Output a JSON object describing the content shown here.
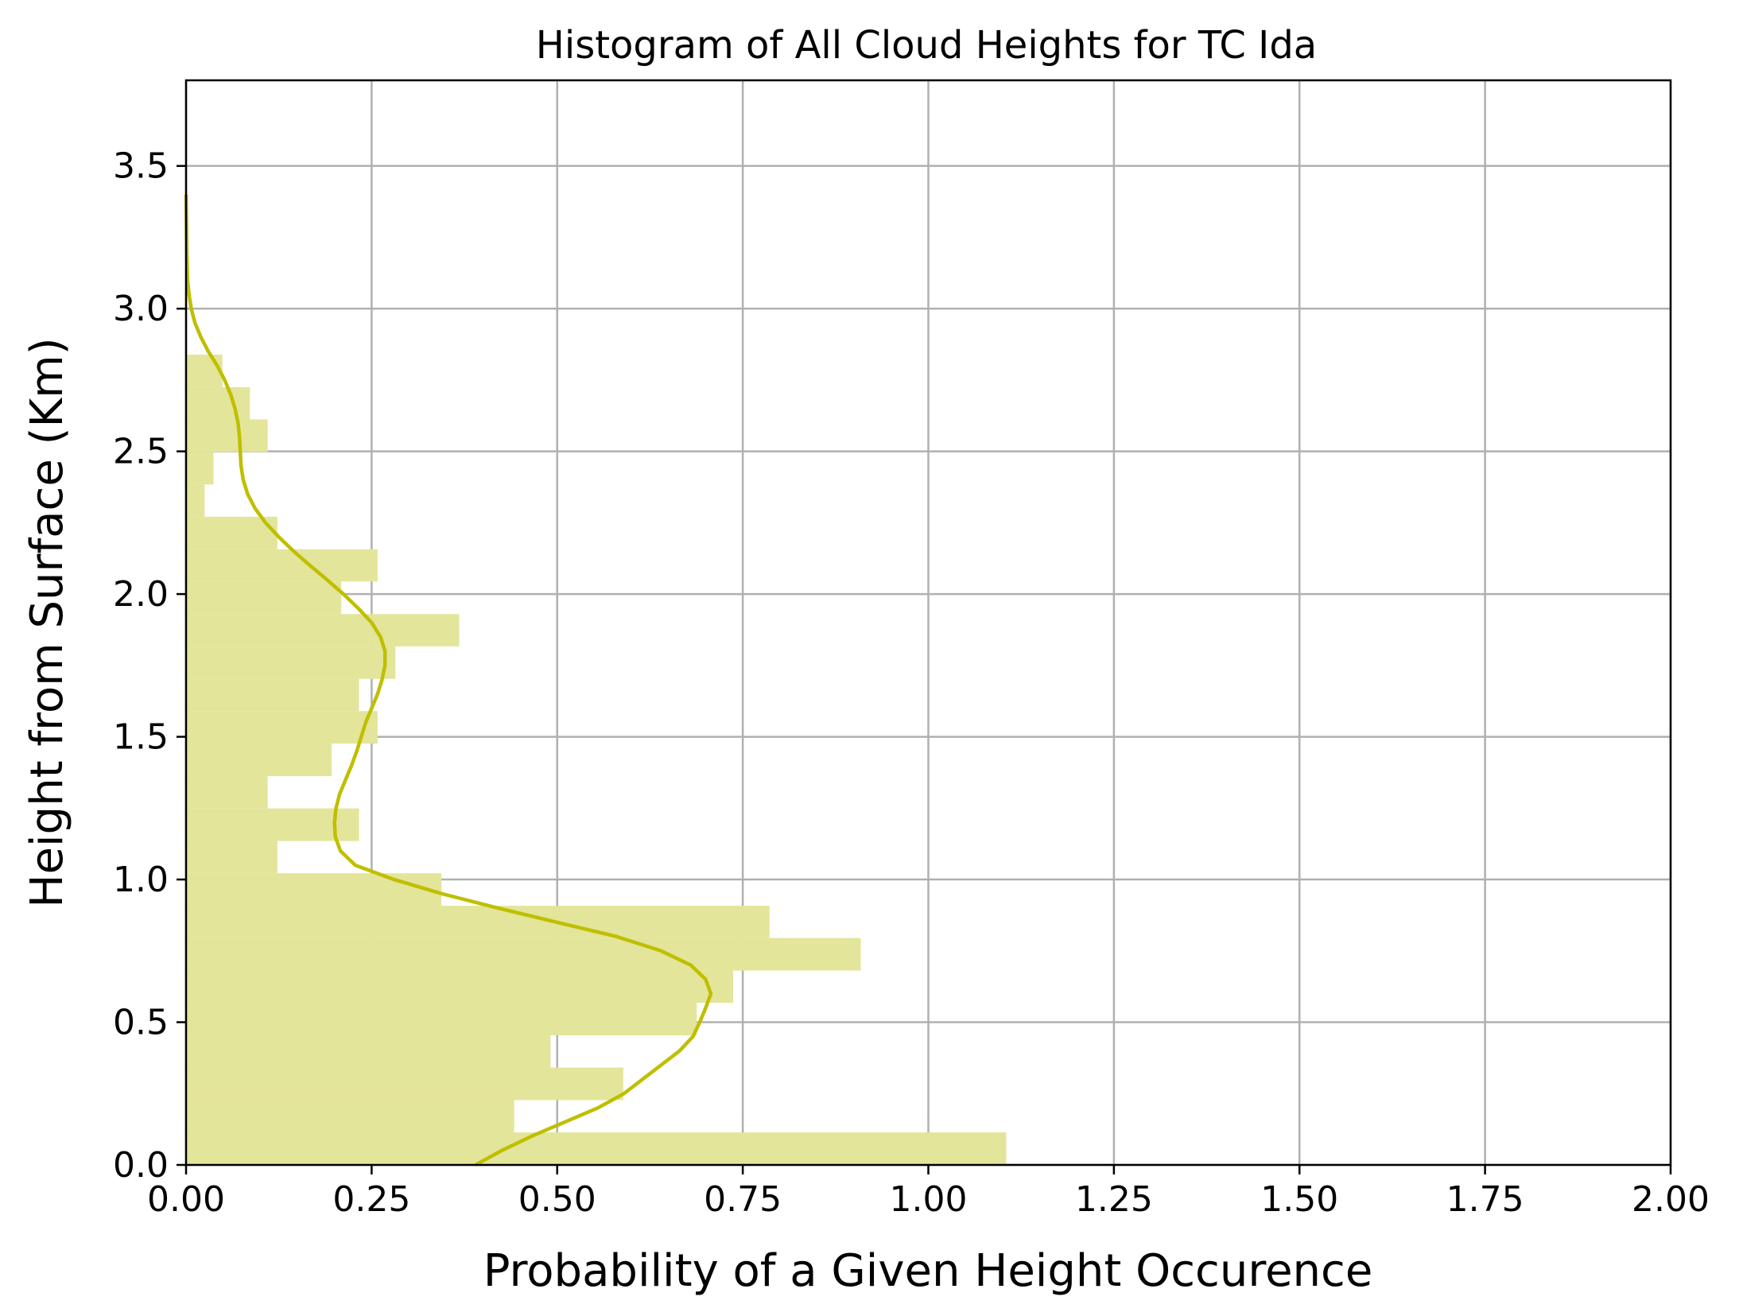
{
  "chart_data": {
    "type": "bar",
    "orientation": "horizontal",
    "title": "Histogram of All Cloud Heights for TC Ida",
    "xlabel": "Probability of a Given Height Occurence",
    "ylabel": "Height from Surface (Km)",
    "xlim": [
      0.0,
      2.0
    ],
    "ylim": [
      0.0,
      3.8
    ],
    "xticks": [
      "0.00",
      "0.25",
      "0.50",
      "0.75",
      "1.00",
      "1.25",
      "1.50",
      "1.75",
      "2.00"
    ],
    "yticks": [
      "0.0",
      "0.5",
      "1.0",
      "1.5",
      "2.0",
      "2.5",
      "3.0",
      "3.5"
    ],
    "grid": true,
    "colors": {
      "bars": "#e3e59a",
      "kde_line": "#bfbf00"
    },
    "bins": [
      {
        "y0": 0.0,
        "y1": 0.114,
        "value": 1.105
      },
      {
        "y0": 0.114,
        "y1": 0.227,
        "value": 0.442
      },
      {
        "y0": 0.227,
        "y1": 0.341,
        "value": 0.589
      },
      {
        "y0": 0.341,
        "y1": 0.454,
        "value": 0.491
      },
      {
        "y0": 0.454,
        "y1": 0.568,
        "value": 0.688
      },
      {
        "y0": 0.568,
        "y1": 0.681,
        "value": 0.737
      },
      {
        "y0": 0.681,
        "y1": 0.795,
        "value": 0.909
      },
      {
        "y0": 0.795,
        "y1": 0.908,
        "value": 0.786
      },
      {
        "y0": 0.908,
        "y1": 1.022,
        "value": 0.344
      },
      {
        "y0": 1.022,
        "y1": 1.135,
        "value": 0.123
      },
      {
        "y0": 1.135,
        "y1": 1.249,
        "value": 0.233
      },
      {
        "y0": 1.249,
        "y1": 1.362,
        "value": 0.11
      },
      {
        "y0": 1.362,
        "y1": 1.476,
        "value": 0.196
      },
      {
        "y0": 1.476,
        "y1": 1.59,
        "value": 0.258
      },
      {
        "y0": 1.59,
        "y1": 1.703,
        "value": 0.233
      },
      {
        "y0": 1.703,
        "y1": 1.817,
        "value": 0.282
      },
      {
        "y0": 1.817,
        "y1": 1.93,
        "value": 0.368
      },
      {
        "y0": 1.93,
        "y1": 2.044,
        "value": 0.209
      },
      {
        "y0": 2.044,
        "y1": 2.157,
        "value": 0.258
      },
      {
        "y0": 2.157,
        "y1": 2.271,
        "value": 0.123
      },
      {
        "y0": 2.271,
        "y1": 2.384,
        "value": 0.025
      },
      {
        "y0": 2.384,
        "y1": 2.498,
        "value": 0.037
      },
      {
        "y0": 2.498,
        "y1": 2.612,
        "value": 0.11
      },
      {
        "y0": 2.612,
        "y1": 2.725,
        "value": 0.086
      },
      {
        "y0": 2.725,
        "y1": 2.839,
        "value": 0.049
      }
    ],
    "kde": {
      "y": [
        0.0,
        0.05,
        0.1,
        0.15,
        0.2,
        0.25,
        0.3,
        0.35,
        0.4,
        0.45,
        0.5,
        0.55,
        0.6,
        0.65,
        0.7,
        0.75,
        0.8,
        0.85,
        0.9,
        0.95,
        1.0,
        1.05,
        1.1,
        1.15,
        1.2,
        1.25,
        1.3,
        1.35,
        1.4,
        1.45,
        1.5,
        1.55,
        1.6,
        1.65,
        1.7,
        1.75,
        1.8,
        1.85,
        1.9,
        1.95,
        2.0,
        2.05,
        2.1,
        2.15,
        2.2,
        2.25,
        2.3,
        2.35,
        2.4,
        2.45,
        2.5,
        2.55,
        2.6,
        2.65,
        2.7,
        2.75,
        2.8,
        2.85,
        2.9,
        2.95,
        3.0,
        3.05,
        3.1,
        3.2,
        3.3,
        3.4
      ],
      "x": [
        0.39,
        0.425,
        0.465,
        0.51,
        0.555,
        0.59,
        0.615,
        0.64,
        0.665,
        0.683,
        0.692,
        0.7,
        0.707,
        0.7,
        0.68,
        0.64,
        0.58,
        0.5,
        0.42,
        0.345,
        0.28,
        0.228,
        0.208,
        0.201,
        0.2,
        0.202,
        0.207,
        0.215,
        0.223,
        0.23,
        0.236,
        0.242,
        0.25,
        0.258,
        0.264,
        0.268,
        0.268,
        0.262,
        0.25,
        0.232,
        0.212,
        0.19,
        0.167,
        0.145,
        0.125,
        0.107,
        0.093,
        0.083,
        0.077,
        0.074,
        0.073,
        0.072,
        0.07,
        0.066,
        0.06,
        0.052,
        0.042,
        0.03,
        0.02,
        0.012,
        0.007,
        0.004,
        0.002,
        0.001,
        0.0005,
        0.0
      ]
    }
  }
}
